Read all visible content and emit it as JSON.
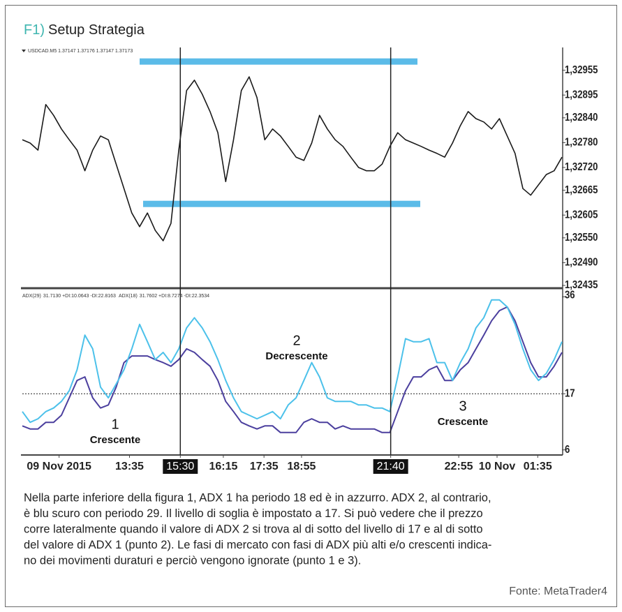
{
  "figure_label": "F1)",
  "title": "Setup Strategia",
  "chart_data": [
    {
      "type": "line",
      "header": "USDCAD.M5  1.37147 1.37176 1.37147 1.37173",
      "color": "#1a1a1a",
      "x": [
        0,
        1,
        2,
        3,
        4,
        5,
        6,
        7,
        8,
        9,
        10,
        11,
        12,
        13,
        14,
        15,
        16,
        17,
        18,
        19,
        20,
        21,
        22,
        23,
        24,
        25,
        26,
        27,
        28,
        29,
        30,
        31,
        32,
        33,
        34,
        35,
        36,
        37,
        38,
        39,
        40,
        41,
        42,
        43,
        44,
        45,
        46,
        47,
        48,
        49,
        50,
        51,
        52,
        53,
        54,
        55,
        56,
        57,
        58,
        59,
        60,
        61,
        62,
        63,
        64,
        65,
        66,
        67,
        68,
        69
      ],
      "values": [
        1.32787,
        1.32779,
        1.32762,
        1.32872,
        1.32846,
        1.32813,
        1.32787,
        1.32762,
        1.32712,
        1.32762,
        1.32796,
        1.32787,
        1.32728,
        1.32669,
        1.3261,
        1.32577,
        1.3261,
        1.32568,
        1.32543,
        1.32585,
        1.32762,
        1.32906,
        1.32931,
        1.32897,
        1.32855,
        1.32804,
        1.32686,
        1.32787,
        1.32906,
        1.32939,
        1.32889,
        1.32787,
        1.32813,
        1.32796,
        1.32771,
        1.32745,
        1.32737,
        1.32779,
        1.32846,
        1.32813,
        1.32787,
        1.32771,
        1.32745,
        1.3272,
        1.32712,
        1.32712,
        1.32728,
        1.32771,
        1.32804,
        1.32787,
        1.32779,
        1.32771,
        1.32762,
        1.32754,
        1.32745,
        1.32779,
        1.32821,
        1.32855,
        1.32838,
        1.3283,
        1.32813,
        1.32838,
        1.32796,
        1.32754,
        1.32669,
        1.32653,
        1.32678,
        1.32703,
        1.32712,
        1.32745
      ],
      "xlim": [
        0,
        69
      ],
      "ylim": [
        1.3243,
        1.3301
      ],
      "yticks": [
        {
          "value": 1.32955,
          "label": "1,32955"
        },
        {
          "value": 1.32895,
          "label": "1,32895"
        },
        {
          "value": 1.3284,
          "label": "1,32840"
        },
        {
          "value": 1.3278,
          "label": "1,32780"
        },
        {
          "value": 1.3272,
          "label": "1,32720"
        },
        {
          "value": 1.32665,
          "label": "1,32665"
        },
        {
          "value": 1.32605,
          "label": "1,32605"
        },
        {
          "value": 1.3255,
          "label": "1,32550"
        },
        {
          "value": 1.3249,
          "label": "1,32490"
        },
        {
          "value": 1.32435,
          "label": "1,32435"
        }
      ],
      "levels": [
        1.32976,
        1.32632
      ],
      "level_color": "#5bbbe8"
    },
    {
      "type": "line",
      "x": [
        0,
        1,
        2,
        3,
        4,
        5,
        6,
        7,
        8,
        9,
        10,
        11,
        12,
        13,
        14,
        15,
        16,
        17,
        18,
        19,
        20,
        21,
        22,
        23,
        24,
        25,
        26,
        27,
        28,
        29,
        30,
        31,
        32,
        33,
        34,
        35,
        36,
        37,
        38,
        39,
        40,
        41,
        42,
        43,
        44,
        45,
        46,
        47,
        48,
        49,
        50,
        51,
        52,
        53,
        54,
        55,
        56,
        57,
        58,
        59,
        60,
        61,
        62,
        63,
        64,
        65,
        66,
        67,
        68,
        69
      ],
      "series": [
        {
          "name": "ADX(29)",
          "info": "31.7130 +DI:10.0643 -DI:22.8163",
          "color": "#4b3f9e",
          "values": [
            10.7,
            10.1,
            10.1,
            11.4,
            11.4,
            12.8,
            16.2,
            19.6,
            20.3,
            16.2,
            14.2,
            14.8,
            18.3,
            23.1,
            24.4,
            24.4,
            24.4,
            23.7,
            23.1,
            22.4,
            23.7,
            25.8,
            25.1,
            23.7,
            22.4,
            19.6,
            15.5,
            13.5,
            11.4,
            10.7,
            10.1,
            10.7,
            10.7,
            9.4,
            9.4,
            9.4,
            11.4,
            12.1,
            11.4,
            11.4,
            10.1,
            10.7,
            10.1,
            10.1,
            10.1,
            10.1,
            9.4,
            9.4,
            13.5,
            17.6,
            20.3,
            20.3,
            21.7,
            22.4,
            19.6,
            19.6,
            21.7,
            23.1,
            25.8,
            28.5,
            31.3,
            33.3,
            34.0,
            31.3,
            27.2,
            23.1,
            20.3,
            20.3,
            22.4,
            25.1
          ]
        },
        {
          "name": "ADX(18)",
          "info": "31.7602 +DI:8.7274 -DI:22.3534",
          "color": "#4cc1ea",
          "values": [
            13.5,
            11.4,
            12.1,
            13.5,
            14.2,
            15.5,
            17.6,
            21.7,
            28.5,
            25.8,
            18.3,
            16.2,
            18.9,
            21.7,
            25.8,
            30.6,
            27.2,
            23.7,
            25.1,
            23.1,
            25.8,
            29.9,
            31.9,
            29.9,
            27.2,
            23.7,
            19.6,
            16.2,
            13.5,
            12.8,
            12.1,
            12.8,
            13.5,
            12.1,
            14.8,
            16.2,
            19.6,
            23.1,
            20.3,
            16.2,
            15.5,
            15.5,
            15.5,
            14.8,
            14.8,
            14.2,
            14.2,
            13.5,
            20.3,
            27.8,
            27.2,
            27.2,
            27.8,
            23.1,
            23.1,
            19.6,
            23.1,
            25.8,
            29.9,
            31.9,
            35.4,
            35.4,
            34.0,
            30.6,
            25.8,
            21.7,
            19.6,
            21.0,
            23.7,
            27.2
          ]
        }
      ],
      "xlim": [
        0,
        69
      ],
      "ylim": [
        5,
        37
      ],
      "yticks": [
        36,
        17,
        6
      ],
      "threshold": 17,
      "xticks": [
        {
          "value": 4.7,
          "label": "09 Nov 2015"
        },
        {
          "value": 13.7,
          "label": "13:35"
        },
        {
          "value": 20.2,
          "label": "15:30",
          "highlight": true
        },
        {
          "value": 25.7,
          "label": "16:15"
        },
        {
          "value": 30.9,
          "label": "17:35"
        },
        {
          "value": 35.7,
          "label": "18:55"
        },
        {
          "value": 47.1,
          "label": "21:40",
          "highlight": true
        },
        {
          "value": 55.8,
          "label": "22:55"
        },
        {
          "value": 60.7,
          "label": "10 Nov"
        },
        {
          "value": 65.9,
          "label": "01:35"
        }
      ],
      "vlines": [
        20.2,
        47.1
      ],
      "annotations": [
        {
          "label": "1",
          "text": "Crescente"
        },
        {
          "label": "2",
          "text": "Decrescente"
        },
        {
          "label": "3",
          "text": "Crescente"
        }
      ]
    }
  ],
  "paragraph": [
    "Nella parte inferiore della figura 1, ADX 1 ha periodo 18 ed è in azzurro. ADX 2, al contrario,",
    "è blu scuro con periodo 29. Il livello di soglia è impostato a 17. Si può vedere che il prezzo",
    "corre lateralmente quando il valore di ADX 2 si trova al di sotto del livello di 17 e al di sotto",
    "del valore di ADX 1 (punto 2). Le fasi di mercato con fasi di ADX più alti e/o crescenti indica-",
    "no dei movimenti duraturi e perciò vengono ignorate (punto 1 e 3)."
  ],
  "source": "Fonte: MetaTrader4"
}
